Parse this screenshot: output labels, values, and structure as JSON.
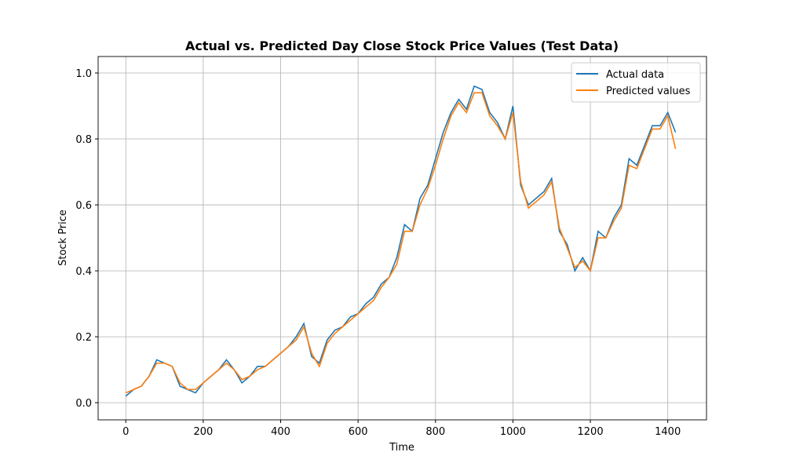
{
  "chart_data": {
    "type": "line",
    "title": "Actual vs. Predicted Day Close Stock Price Values (Test Data)",
    "xlabel": "Time",
    "ylabel": "Stock Price",
    "x": [
      0,
      20,
      40,
      60,
      80,
      100,
      120,
      140,
      160,
      180,
      200,
      220,
      240,
      260,
      280,
      300,
      320,
      340,
      360,
      380,
      400,
      420,
      440,
      460,
      480,
      500,
      520,
      540,
      560,
      580,
      600,
      620,
      640,
      660,
      680,
      700,
      720,
      740,
      760,
      780,
      800,
      820,
      840,
      860,
      880,
      900,
      920,
      940,
      960,
      980,
      1000,
      1020,
      1040,
      1060,
      1080,
      1100,
      1120,
      1140,
      1160,
      1180,
      1200,
      1220,
      1240,
      1260,
      1280,
      1300,
      1320,
      1340,
      1360,
      1380,
      1400,
      1420
    ],
    "series": [
      {
        "name": "Actual data",
        "color": "#1f77b4",
        "values": [
          0.02,
          0.04,
          0.05,
          0.08,
          0.13,
          0.12,
          0.11,
          0.05,
          0.04,
          0.03,
          0.06,
          0.08,
          0.1,
          0.13,
          0.1,
          0.06,
          0.08,
          0.11,
          0.11,
          0.13,
          0.15,
          0.17,
          0.2,
          0.24,
          0.14,
          0.12,
          0.19,
          0.22,
          0.23,
          0.26,
          0.27,
          0.3,
          0.32,
          0.36,
          0.38,
          0.44,
          0.54,
          0.52,
          0.62,
          0.66,
          0.74,
          0.82,
          0.88,
          0.92,
          0.89,
          0.96,
          0.95,
          0.88,
          0.85,
          0.8,
          0.9,
          0.66,
          0.6,
          0.62,
          0.64,
          0.68,
          0.52,
          0.48,
          0.4,
          0.44,
          0.4,
          0.52,
          0.5,
          0.56,
          0.6,
          0.74,
          0.72,
          0.78,
          0.84,
          0.84,
          0.88,
          0.82
        ]
      },
      {
        "name": "Predicted values",
        "color": "#ff7f0e",
        "values": [
          0.03,
          0.04,
          0.05,
          0.08,
          0.12,
          0.12,
          0.11,
          0.06,
          0.04,
          0.04,
          0.06,
          0.08,
          0.1,
          0.12,
          0.1,
          0.07,
          0.08,
          0.1,
          0.11,
          0.13,
          0.15,
          0.17,
          0.19,
          0.23,
          0.15,
          0.11,
          0.18,
          0.21,
          0.23,
          0.25,
          0.27,
          0.29,
          0.31,
          0.35,
          0.38,
          0.42,
          0.52,
          0.52,
          0.6,
          0.65,
          0.72,
          0.8,
          0.87,
          0.91,
          0.88,
          0.94,
          0.94,
          0.87,
          0.84,
          0.8,
          0.88,
          0.67,
          0.59,
          0.61,
          0.63,
          0.67,
          0.53,
          0.47,
          0.41,
          0.43,
          0.4,
          0.5,
          0.5,
          0.55,
          0.59,
          0.72,
          0.71,
          0.77,
          0.83,
          0.83,
          0.87,
          0.77
        ]
      }
    ],
    "xlim": [
      -71.5,
      1500
    ],
    "ylim": [
      -0.052,
      1.05
    ],
    "xticks": [
      0,
      200,
      400,
      600,
      800,
      1000,
      1200,
      1400
    ],
    "yticks": [
      {
        "value": 0,
        "label": "0.0"
      },
      0.2,
      0.4,
      0.6,
      0.8,
      {
        "value": 1,
        "label": "1.0"
      }
    ],
    "grid": true,
    "legend": "upper right"
  }
}
